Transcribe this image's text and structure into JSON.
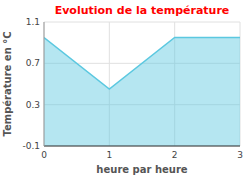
{
  "chart_data": {
    "type": "area",
    "title": "Evolution de la température",
    "x_label": "heure par heure",
    "y_label": "Température en °C",
    "x": [
      0,
      1,
      2,
      3
    ],
    "values": [
      0.95,
      0.45,
      0.95,
      0.95
    ],
    "color": "#5bc8e0",
    "xlim": [
      0,
      3
    ],
    "ylim": [
      -0.1,
      1.1
    ],
    "xticks": [
      0,
      1,
      2,
      3
    ],
    "yticks": [
      -0.1,
      0.3,
      0.7,
      1.1
    ],
    "grid": true
  }
}
